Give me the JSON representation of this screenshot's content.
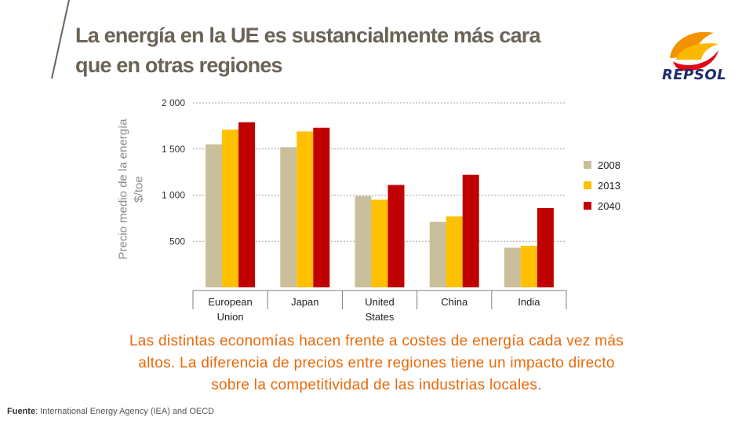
{
  "slide": {
    "title_line1": "La energía en la UE es sustancialmente más cara",
    "title_line2": "que en otras regiones",
    "caption_line1": "Las distintas economías hacen frente a costes de energía cada vez más",
    "caption_line2": "altos. La diferencia de precios entre regiones tiene un impacto directo",
    "caption_line3": "sobre la competitividad de las industrias locales.",
    "source_label": "Fuente",
    "source_text": ": International Energy Agency (IEA) and OECD"
  },
  "logo": {
    "text": "REPSOL",
    "colors": {
      "orange": "#f39200",
      "red": "#e30613",
      "navy": "#1d2c6b"
    }
  },
  "accent_color": "#e8690b",
  "chart_data": {
    "type": "bar",
    "ylabel_line1": "Precio medio de la energía",
    "ylabel_line2": "$/toe",
    "categories": [
      {
        "line1": "European",
        "line2": "Union"
      },
      {
        "line1": "Japan",
        "line2": ""
      },
      {
        "line1": "United",
        "line2": "States"
      },
      {
        "line1": "China",
        "line2": ""
      },
      {
        "line1": "India",
        "line2": ""
      }
    ],
    "series": [
      {
        "name": "2008",
        "color": "#c9bf9b",
        "values": [
          1550,
          1520,
          990,
          710,
          430
        ]
      },
      {
        "name": "2013",
        "color": "#ffc000",
        "values": [
          1710,
          1690,
          950,
          770,
          450
        ]
      },
      {
        "name": "2040",
        "color": "#c00000",
        "values": [
          1790,
          1730,
          1110,
          1220,
          860
        ]
      }
    ],
    "yticks": [
      {
        "value": 500,
        "label": "500"
      },
      {
        "value": 1000,
        "label": "1 000"
      },
      {
        "value": 1500,
        "label": "1 500"
      },
      {
        "value": 2000,
        "label": "2 000"
      }
    ],
    "ylim": [
      0,
      2000
    ],
    "grid": true,
    "legend_position": "right"
  }
}
